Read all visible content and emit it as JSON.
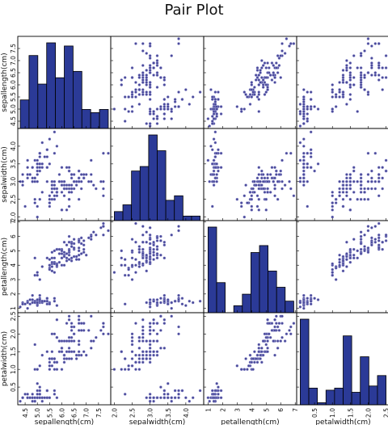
{
  "title": "Pair Plot",
  "style": {
    "bar_fill": "#2b3a97",
    "bar_edge": "#000000",
    "point_fill": "#4a4a9a",
    "point_edge": "#aaaadd"
  },
  "chart_data": {
    "type": "scatter-matrix",
    "title": "Pair Plot",
    "variables": [
      {
        "name": "sepallength(cm)",
        "range": [
          4.2,
          8.0
        ],
        "ticks": [
          4.5,
          5.0,
          5.5,
          6.0,
          6.5,
          7.0,
          7.5
        ]
      },
      {
        "name": "sepalwidth(cm)",
        "range": [
          1.9,
          4.5
        ],
        "ticks": [
          2.0,
          2.5,
          3.0,
          3.5,
          4.0
        ]
      },
      {
        "name": "petallength(cm)",
        "range": [
          0.7,
          7.1
        ],
        "ticks": [
          1,
          2,
          3,
          4,
          5,
          6,
          7
        ]
      },
      {
        "name": "petalwidth(cm)",
        "range": [
          0.0,
          2.6
        ],
        "ticks": [
          0.5,
          1.0,
          1.5,
          2.0,
          2.5
        ]
      }
    ],
    "histograms": [
      {
        "variable": "sepallength(cm)",
        "bin_edges": [
          4.3,
          4.66,
          5.02,
          5.38,
          5.74,
          6.1,
          6.46,
          6.82,
          7.18,
          7.54,
          7.9
        ],
        "counts": [
          9,
          23,
          14,
          27,
          16,
          26,
          18,
          6,
          5,
          6
        ]
      },
      {
        "variable": "sepalwidth(cm)",
        "bin_edges": [
          2.0,
          2.24,
          2.48,
          2.72,
          2.96,
          3.2,
          3.44,
          3.68,
          3.92,
          4.16,
          4.4
        ],
        "counts": [
          4,
          7,
          22,
          24,
          38,
          31,
          9,
          11,
          2,
          2
        ]
      },
      {
        "variable": "petallength(cm)",
        "bin_edges": [
          1.0,
          1.59,
          2.18,
          2.77,
          3.36,
          3.95,
          4.54,
          5.13,
          5.72,
          6.31,
          6.9
        ],
        "counts": [
          37,
          13,
          0,
          3,
          8,
          26,
          29,
          18,
          11,
          5
        ]
      },
      {
        "variable": "petalwidth(cm)",
        "bin_edges": [
          0.1,
          0.34,
          0.58,
          0.82,
          1.06,
          1.3,
          1.54,
          1.78,
          2.02,
          2.26,
          2.5
        ],
        "counts": [
          41,
          8,
          1,
          7,
          8,
          33,
          6,
          23,
          9,
          14
        ]
      }
    ],
    "points": [
      [
        5.1,
        3.5,
        1.4,
        0.2
      ],
      [
        4.9,
        3.0,
        1.4,
        0.2
      ],
      [
        4.7,
        3.2,
        1.3,
        0.2
      ],
      [
        4.6,
        3.1,
        1.5,
        0.2
      ],
      [
        5.0,
        3.6,
        1.4,
        0.2
      ],
      [
        5.4,
        3.9,
        1.7,
        0.4
      ],
      [
        4.6,
        3.4,
        1.4,
        0.3
      ],
      [
        5.0,
        3.4,
        1.5,
        0.2
      ],
      [
        4.4,
        2.9,
        1.4,
        0.2
      ],
      [
        4.9,
        3.1,
        1.5,
        0.1
      ],
      [
        5.4,
        3.7,
        1.5,
        0.2
      ],
      [
        4.8,
        3.4,
        1.6,
        0.2
      ],
      [
        4.8,
        3.0,
        1.4,
        0.1
      ],
      [
        4.3,
        3.0,
        1.1,
        0.1
      ],
      [
        5.8,
        4.0,
        1.2,
        0.2
      ],
      [
        5.7,
        4.4,
        1.5,
        0.4
      ],
      [
        5.4,
        3.9,
        1.3,
        0.4
      ],
      [
        5.1,
        3.5,
        1.4,
        0.3
      ],
      [
        5.7,
        3.8,
        1.7,
        0.3
      ],
      [
        5.1,
        3.8,
        1.5,
        0.3
      ],
      [
        5.4,
        3.4,
        1.7,
        0.2
      ],
      [
        5.1,
        3.7,
        1.5,
        0.4
      ],
      [
        4.6,
        3.6,
        1.0,
        0.2
      ],
      [
        5.1,
        3.3,
        1.7,
        0.5
      ],
      [
        4.8,
        3.4,
        1.9,
        0.2
      ],
      [
        5.0,
        3.0,
        1.6,
        0.2
      ],
      [
        5.0,
        3.4,
        1.6,
        0.4
      ],
      [
        5.2,
        3.5,
        1.5,
        0.2
      ],
      [
        5.2,
        3.4,
        1.4,
        0.2
      ],
      [
        4.7,
        3.2,
        1.6,
        0.2
      ],
      [
        4.8,
        3.1,
        1.6,
        0.2
      ],
      [
        5.4,
        3.4,
        1.5,
        0.4
      ],
      [
        5.2,
        4.1,
        1.5,
        0.1
      ],
      [
        5.5,
        4.2,
        1.4,
        0.2
      ],
      [
        4.9,
        3.1,
        1.5,
        0.2
      ],
      [
        5.0,
        3.2,
        1.2,
        0.2
      ],
      [
        5.5,
        3.5,
        1.3,
        0.2
      ],
      [
        4.9,
        3.6,
        1.4,
        0.1
      ],
      [
        4.4,
        3.0,
        1.3,
        0.2
      ],
      [
        5.1,
        3.4,
        1.5,
        0.2
      ],
      [
        5.0,
        3.5,
        1.3,
        0.3
      ],
      [
        4.5,
        2.3,
        1.3,
        0.3
      ],
      [
        4.4,
        3.2,
        1.3,
        0.2
      ],
      [
        5.0,
        3.5,
        1.6,
        0.6
      ],
      [
        5.1,
        3.8,
        1.9,
        0.4
      ],
      [
        4.8,
        3.0,
        1.4,
        0.3
      ],
      [
        5.1,
        3.8,
        1.6,
        0.2
      ],
      [
        4.6,
        3.2,
        1.4,
        0.2
      ],
      [
        5.3,
        3.7,
        1.5,
        0.2
      ],
      [
        5.0,
        3.3,
        1.4,
        0.2
      ],
      [
        7.0,
        3.2,
        4.7,
        1.4
      ],
      [
        6.4,
        3.2,
        4.5,
        1.5
      ],
      [
        6.9,
        3.1,
        4.9,
        1.5
      ],
      [
        5.5,
        2.3,
        4.0,
        1.3
      ],
      [
        6.5,
        2.8,
        4.6,
        1.5
      ],
      [
        5.7,
        2.8,
        4.5,
        1.3
      ],
      [
        6.3,
        3.3,
        4.7,
        1.6
      ],
      [
        4.9,
        2.4,
        3.3,
        1.0
      ],
      [
        6.6,
        2.9,
        4.6,
        1.3
      ],
      [
        5.2,
        2.7,
        3.9,
        1.4
      ],
      [
        5.0,
        2.0,
        3.5,
        1.0
      ],
      [
        5.9,
        3.0,
        4.2,
        1.5
      ],
      [
        6.0,
        2.2,
        4.0,
        1.0
      ],
      [
        6.1,
        2.9,
        4.7,
        1.4
      ],
      [
        5.6,
        2.9,
        3.6,
        1.3
      ],
      [
        6.7,
        3.1,
        4.4,
        1.4
      ],
      [
        5.6,
        3.0,
        4.5,
        1.5
      ],
      [
        5.8,
        2.7,
        4.1,
        1.0
      ],
      [
        6.2,
        2.2,
        4.5,
        1.5
      ],
      [
        5.6,
        2.5,
        3.9,
        1.1
      ],
      [
        5.9,
        3.2,
        4.8,
        1.8
      ],
      [
        6.1,
        2.8,
        4.0,
        1.3
      ],
      [
        6.3,
        2.5,
        4.9,
        1.5
      ],
      [
        6.1,
        2.8,
        4.7,
        1.2
      ],
      [
        6.4,
        2.9,
        4.3,
        1.3
      ],
      [
        6.6,
        3.0,
        4.4,
        1.4
      ],
      [
        6.8,
        2.8,
        4.8,
        1.4
      ],
      [
        6.7,
        3.0,
        5.0,
        1.7
      ],
      [
        6.0,
        2.9,
        4.5,
        1.5
      ],
      [
        5.7,
        2.6,
        3.5,
        1.0
      ],
      [
        5.5,
        2.4,
        3.8,
        1.1
      ],
      [
        5.5,
        2.4,
        3.7,
        1.0
      ],
      [
        5.8,
        2.7,
        3.9,
        1.2
      ],
      [
        6.0,
        2.7,
        5.1,
        1.6
      ],
      [
        5.4,
        3.0,
        4.5,
        1.5
      ],
      [
        6.0,
        3.4,
        4.5,
        1.6
      ],
      [
        6.7,
        3.1,
        4.7,
        1.5
      ],
      [
        6.3,
        2.3,
        4.4,
        1.3
      ],
      [
        5.6,
        3.0,
        4.1,
        1.3
      ],
      [
        5.5,
        2.5,
        4.0,
        1.3
      ],
      [
        5.5,
        2.6,
        4.4,
        1.2
      ],
      [
        6.1,
        3.0,
        4.6,
        1.4
      ],
      [
        5.8,
        2.6,
        4.0,
        1.2
      ],
      [
        5.0,
        2.3,
        3.3,
        1.0
      ],
      [
        5.6,
        2.7,
        4.2,
        1.3
      ],
      [
        5.7,
        3.0,
        4.2,
        1.2
      ],
      [
        5.7,
        2.9,
        4.2,
        1.3
      ],
      [
        6.2,
        2.9,
        4.3,
        1.3
      ],
      [
        5.1,
        2.5,
        3.0,
        1.1
      ],
      [
        5.7,
        2.8,
        4.1,
        1.3
      ],
      [
        6.3,
        3.3,
        6.0,
        2.5
      ],
      [
        5.8,
        2.7,
        5.1,
        1.9
      ],
      [
        7.1,
        3.0,
        5.9,
        2.1
      ],
      [
        6.3,
        2.9,
        5.6,
        1.8
      ],
      [
        6.5,
        3.0,
        5.8,
        2.2
      ],
      [
        7.6,
        3.0,
        6.6,
        2.1
      ],
      [
        4.9,
        2.5,
        4.5,
        1.7
      ],
      [
        7.3,
        2.9,
        6.3,
        1.8
      ],
      [
        6.7,
        2.5,
        5.8,
        1.8
      ],
      [
        7.2,
        3.6,
        6.1,
        2.5
      ],
      [
        6.5,
        3.2,
        5.1,
        2.0
      ],
      [
        6.4,
        2.7,
        5.3,
        1.9
      ],
      [
        6.8,
        3.0,
        5.5,
        2.1
      ],
      [
        5.7,
        2.5,
        5.0,
        2.0
      ],
      [
        5.8,
        2.8,
        5.1,
        2.4
      ],
      [
        6.4,
        3.2,
        5.3,
        2.3
      ],
      [
        6.5,
        3.0,
        5.5,
        1.8
      ],
      [
        7.7,
        3.8,
        6.7,
        2.2
      ],
      [
        7.7,
        2.6,
        6.9,
        2.3
      ],
      [
        6.0,
        2.2,
        5.0,
        1.5
      ],
      [
        6.9,
        3.2,
        5.7,
        2.3
      ],
      [
        5.6,
        2.8,
        4.9,
        2.0
      ],
      [
        7.7,
        2.8,
        6.7,
        2.0
      ],
      [
        6.3,
        2.7,
        4.9,
        1.8
      ],
      [
        6.7,
        3.3,
        5.7,
        2.1
      ],
      [
        7.2,
        3.2,
        6.0,
        1.8
      ],
      [
        6.2,
        2.8,
        4.8,
        1.8
      ],
      [
        6.1,
        3.0,
        4.9,
        1.8
      ],
      [
        6.4,
        2.8,
        5.6,
        2.1
      ],
      [
        7.2,
        3.0,
        5.8,
        1.6
      ],
      [
        7.4,
        2.8,
        6.1,
        1.9
      ],
      [
        7.9,
        3.8,
        6.4,
        2.0
      ],
      [
        6.4,
        2.8,
        5.6,
        2.2
      ],
      [
        6.3,
        2.8,
        5.1,
        1.5
      ],
      [
        6.1,
        2.6,
        5.6,
        1.4
      ],
      [
        7.7,
        3.0,
        6.1,
        2.3
      ],
      [
        6.3,
        3.4,
        5.6,
        2.4
      ],
      [
        6.4,
        3.1,
        5.5,
        1.8
      ],
      [
        6.0,
        3.0,
        4.8,
        1.8
      ],
      [
        6.9,
        3.1,
        5.4,
        2.1
      ],
      [
        6.7,
        3.1,
        5.6,
        2.4
      ],
      [
        6.9,
        3.1,
        5.1,
        2.3
      ],
      [
        5.8,
        2.7,
        5.1,
        1.9
      ],
      [
        6.8,
        3.2,
        5.9,
        2.3
      ],
      [
        6.7,
        3.3,
        5.7,
        2.5
      ],
      [
        6.7,
        3.0,
        5.2,
        2.3
      ],
      [
        6.3,
        2.5,
        5.0,
        1.9
      ],
      [
        6.5,
        3.0,
        5.2,
        2.0
      ],
      [
        6.2,
        3.4,
        5.4,
        2.3
      ],
      [
        5.9,
        3.0,
        5.1,
        1.8
      ]
    ]
  }
}
